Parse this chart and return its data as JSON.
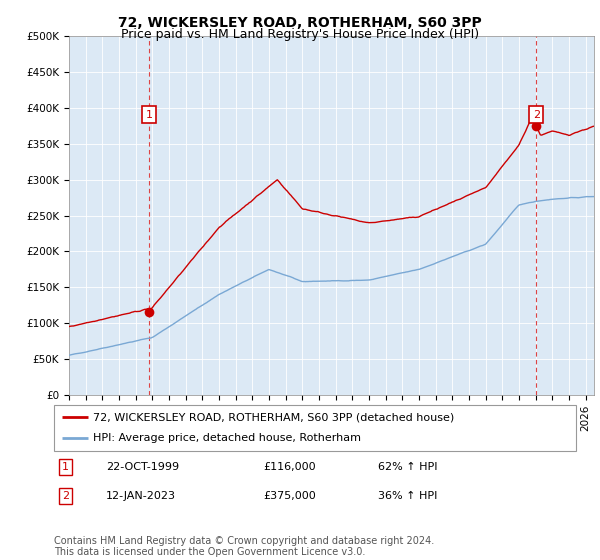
{
  "title": "72, WICKERSLEY ROAD, ROTHERHAM, S60 3PP",
  "subtitle": "Price paid vs. HM Land Registry's House Price Index (HPI)",
  "ylim": [
    0,
    500000
  ],
  "yticks": [
    0,
    50000,
    100000,
    150000,
    200000,
    250000,
    300000,
    350000,
    400000,
    450000,
    500000
  ],
  "ytick_labels": [
    "£0",
    "£50K",
    "£100K",
    "£150K",
    "£200K",
    "£250K",
    "£300K",
    "£350K",
    "£400K",
    "£450K",
    "£500K"
  ],
  "xlim_start": 1995.0,
  "xlim_end": 2026.5,
  "bg_color": "#dce9f5",
  "red_line_color": "#cc0000",
  "blue_line_color": "#7aa8d4",
  "marker_color": "#cc0000",
  "dashed_line_color": "#dd4444",
  "sale1_x": 1999.8,
  "sale1_y": 116000,
  "sale1_label": "1",
  "sale1_date": "22-OCT-1999",
  "sale1_price": "£116,000",
  "sale1_hpi": "62% ↑ HPI",
  "sale2_x": 2023.04,
  "sale2_y": 375000,
  "sale2_label": "2",
  "sale2_date": "12-JAN-2023",
  "sale2_price": "£375,000",
  "sale2_hpi": "36% ↑ HPI",
  "legend_line1": "72, WICKERSLEY ROAD, ROTHERHAM, S60 3PP (detached house)",
  "legend_line2": "HPI: Average price, detached house, Rotherham",
  "footer": "Contains HM Land Registry data © Crown copyright and database right 2024.\nThis data is licensed under the Open Government Licence v3.0.",
  "title_fontsize": 10,
  "subtitle_fontsize": 9,
  "tick_fontsize": 7.5,
  "legend_fontsize": 8,
  "table_fontsize": 8,
  "footer_fontsize": 7
}
